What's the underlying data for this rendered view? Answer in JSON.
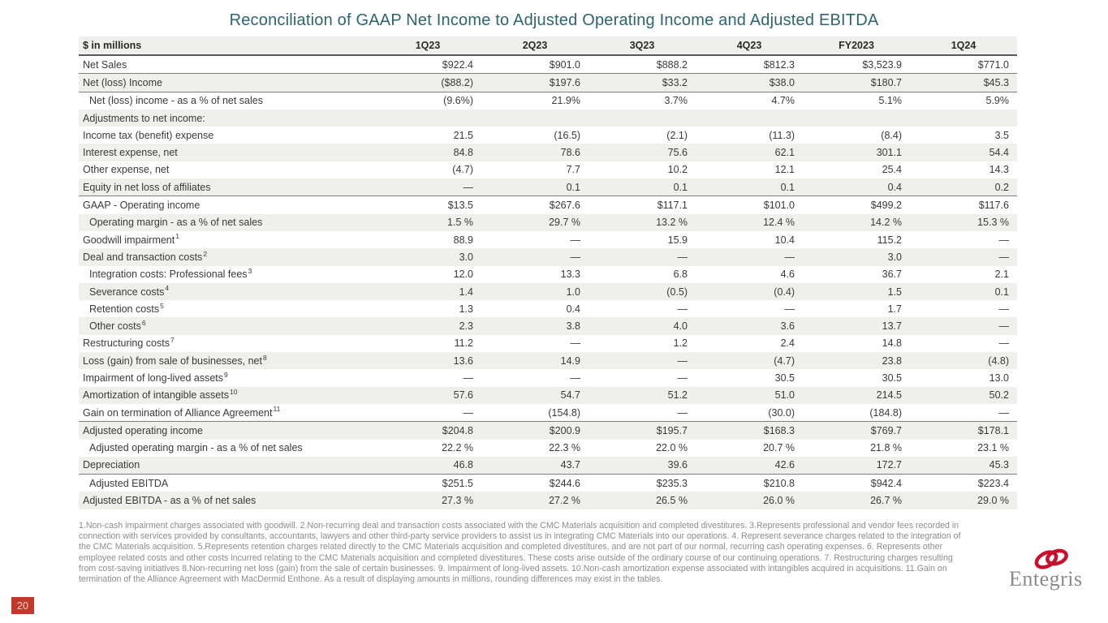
{
  "title": "Reconciliation of GAAP Net Income to Adjusted Operating Income and Adjusted EBITDA",
  "table": {
    "columns": [
      "$ in millions",
      "1Q23",
      "2Q23",
      "3Q23",
      "4Q23",
      "FY2023",
      "1Q24"
    ],
    "rows": [
      {
        "label": "Net Sales",
        "values": [
          "$922.4",
          "$901.0",
          "$888.2",
          "$812.3",
          "$3,523.9",
          "$771.0"
        ],
        "rule": true
      },
      {
        "label": "Net (loss) Income",
        "values": [
          "($88.2)",
          "$197.6",
          "$33.2",
          "$38.0",
          "$180.7",
          "$45.3"
        ],
        "rule": true
      },
      {
        "label": "Net (loss) income - as a % of net sales",
        "indent": true,
        "values": [
          "(9.6%)",
          "21.9%",
          "3.7%",
          "4.7%",
          "5.1%",
          "5.9%"
        ]
      },
      {
        "label": "Adjustments to net income:",
        "values": [
          "",
          "",
          "",
          "",
          "",
          ""
        ]
      },
      {
        "label": "Income tax (benefit) expense",
        "values": [
          "21.5",
          "(16.5)",
          "(2.1)",
          "(11.3)",
          "(8.4)",
          "3.5"
        ]
      },
      {
        "label": "Interest expense, net",
        "values": [
          "84.8",
          "78.6",
          "75.6",
          "62.1",
          "301.1",
          "54.4"
        ]
      },
      {
        "label": "Other expense, net",
        "values": [
          "(4.7)",
          "7.7",
          "10.2",
          "12.1",
          "25.4",
          "14.3"
        ]
      },
      {
        "label": "Equity in net loss of affiliates",
        "values": [
          "—",
          "0.1",
          "0.1",
          "0.1",
          "0.4",
          "0.2"
        ],
        "rule": true
      },
      {
        "label": "GAAP - Operating income",
        "values": [
          "$13.5",
          "$267.6",
          "$117.1",
          "$101.0",
          "$499.2",
          "$117.6"
        ]
      },
      {
        "label": "Operating margin - as a % of net sales",
        "indent": true,
        "values": [
          "1.5 %",
          "29.7 %",
          "13.2 %",
          "12.4 %",
          "14.2 %",
          "15.3 %"
        ]
      },
      {
        "label": "Goodwill impairment",
        "sup": "1",
        "values": [
          "88.9",
          "—",
          "15.9",
          "10.4",
          "115.2",
          "—"
        ]
      },
      {
        "label": "Deal and transaction costs",
        "sup": "2",
        "values": [
          "3.0",
          "—",
          "—",
          "—",
          "3.0",
          "—"
        ]
      },
      {
        "label": "Integration costs: Professional fees",
        "sup": "3",
        "indent": true,
        "values": [
          "12.0",
          "13.3",
          "6.8",
          "4.6",
          "36.7",
          "2.1"
        ]
      },
      {
        "label": "Severance costs",
        "sup": "4",
        "indent": true,
        "values": [
          "1.4",
          "1.0",
          "(0.5)",
          "(0.4)",
          "1.5",
          "0.1"
        ]
      },
      {
        "label": "Retention costs",
        "sup": "5",
        "indent": true,
        "values": [
          "1.3",
          "0.4",
          "—",
          "—",
          "1.7",
          "—"
        ]
      },
      {
        "label": "Other costs",
        "sup": "6",
        "indent": true,
        "values": [
          "2.3",
          "3.8",
          "4.0",
          "3.6",
          "13.7",
          "—"
        ]
      },
      {
        "label": "Restructuring costs",
        "sup": "7",
        "values": [
          "11.2",
          "—",
          "1.2",
          "2.4",
          "14.8",
          "—"
        ]
      },
      {
        "label": "Loss (gain) from sale of businesses, net",
        "sup": "8",
        "values": [
          "13.6",
          "14.9",
          "—",
          "(4.7)",
          "23.8",
          "(4.8)"
        ]
      },
      {
        "label": "Impairment of long-lived assets",
        "sup": "9",
        "values": [
          "—",
          "—",
          "—",
          "30.5",
          "30.5",
          "13.0"
        ]
      },
      {
        "label": "Amortization of intangible assets",
        "sup": "10",
        "values": [
          "57.6",
          "54.7",
          "51.2",
          "51.0",
          "214.5",
          "50.2"
        ]
      },
      {
        "label": "Gain on termination of Alliance Agreement",
        "sup": "11",
        "values": [
          "—",
          "(154.8)",
          "—",
          "(30.0)",
          "(184.8)",
          "—"
        ],
        "rule": true
      },
      {
        "label": "Adjusted operating income",
        "values": [
          "$204.8",
          "$200.9",
          "$195.7",
          "$168.3",
          "$769.7",
          "$178.1"
        ]
      },
      {
        "label": "Adjusted operating margin - as a % of net sales",
        "indent": true,
        "values": [
          "22.2 %",
          "22.3 %",
          "22.0 %",
          "20.7 %",
          "21.8 %",
          "23.1 %"
        ]
      },
      {
        "label": "Depreciation",
        "values": [
          "46.8",
          "43.7",
          "39.6",
          "42.6",
          "172.7",
          "45.3"
        ],
        "rule": true
      },
      {
        "label": "Adjusted EBITDA",
        "indent": true,
        "values": [
          "$251.5",
          "$244.6",
          "$235.3",
          "$210.8",
          "$942.4",
          "$223.4"
        ]
      },
      {
        "label": "Adjusted EBITDA - as a % of net sales",
        "values": [
          "27.3 %",
          "27.2 %",
          "26.5 %",
          "26.0 %",
          "26.7 %",
          "29.0 %"
        ]
      }
    ]
  },
  "footnotes": "1.Non-cash impairment charges associated with goodwill.  2.Non-recurring deal and transaction costs associated with the CMC Materials acquisition and completed divestitures.  3.Represents professional and vendor fees recorded in connection with services provided by consultants, accountants, lawyers and other third-party service providers to assist us in integrating CMC Materials into our operations.  4. Represent severance charges related to the integration of the CMC Materials acquisition.  5.Represents retention charges related directly to the CMC Materials acquisition and completed divestitures, and are not part of our normal, recurring cash operating expenses.  6. Represents other employee related costs and other costs incurred relating to the CMC Materials acquisition and completed divestitures.  These costs arise outside of the ordinary course of our continuing operations.  7. Restructuring charges resulting from cost-saving initiatives  8.Non-recurring net loss (gain) from the sale of certain businesses. 9. Impairment of long-lived assets. 10.Non-cash amortization expense associated with intangibles acquired in acquisitions.  11.Gain on termination of the Alliance Agreement with MacDermid Enthone.  As a result of displaying amounts in millions, rounding differences may exist in the tables.",
  "page_number": "20",
  "logo": {
    "brand": "Entegris",
    "accent_color": "#c8102e",
    "word_color": "#8a8a8a"
  },
  "colors": {
    "title": "#2e6472",
    "band": "#efefec",
    "badge": "#c0392b"
  }
}
